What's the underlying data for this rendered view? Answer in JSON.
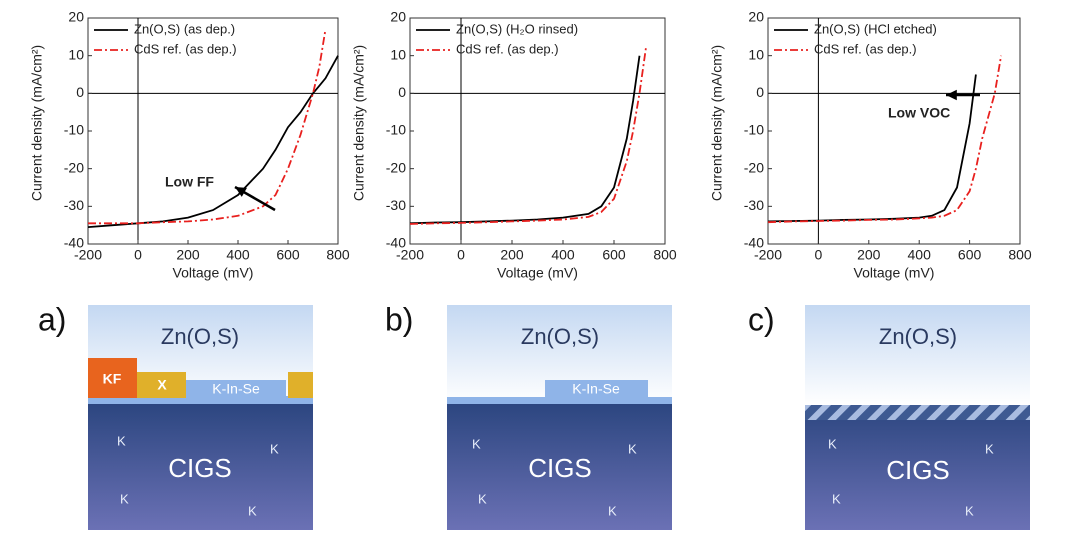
{
  "chart_data": [
    {
      "type": "line",
      "xlabel": "Voltage (mV)",
      "ylabel": "Current density (mA/cm²)",
      "xlim": [
        -200,
        800
      ],
      "ylim": [
        -40,
        20
      ],
      "xticks": [
        -200,
        0,
        200,
        400,
        600,
        800
      ],
      "yticks": [
        -40,
        -30,
        -20,
        -10,
        0,
        10,
        20
      ],
      "legend": "upper left",
      "annotation": "Low FF",
      "x": [
        -200,
        -100,
        0,
        100,
        200,
        300,
        400,
        500,
        550,
        600,
        650,
        700,
        725,
        750,
        800
      ],
      "series": [
        {
          "name": "Zn(O,S) (as dep.)",
          "color": "#000000",
          "linestyle": "solid",
          "values": [
            -35.5,
            -35,
            -34.5,
            -34,
            -33,
            -31,
            -27,
            -20,
            -15,
            -9,
            -5,
            0,
            2,
            4,
            10
          ]
        },
        {
          "name": "CdS ref. (as dep.)",
          "color": "#e8201e",
          "linestyle": "dashdot",
          "values": [
            -34.5,
            -34.5,
            -34.5,
            -34.2,
            -34,
            -33.5,
            -32.5,
            -30,
            -27,
            -20,
            -11,
            0,
            7,
            17,
            null
          ]
        }
      ]
    },
    {
      "type": "line",
      "xlabel": "Voltage (mV)",
      "ylabel": "Current density (mA/cm²)",
      "xlim": [
        -200,
        800
      ],
      "ylim": [
        -40,
        20
      ],
      "xticks": [
        -200,
        0,
        200,
        400,
        600,
        800
      ],
      "yticks": [
        -40,
        -30,
        -20,
        -10,
        0,
        10,
        20
      ],
      "legend": "upper left",
      "x": [
        -200,
        -100,
        0,
        100,
        200,
        300,
        400,
        500,
        550,
        600,
        650,
        675,
        700,
        725,
        750
      ],
      "series": [
        {
          "name": "Zn(O,S) (H₂O rinsed)",
          "color": "#000000",
          "linestyle": "solid",
          "values": [
            -34.5,
            -34.3,
            -34.2,
            -34,
            -33.8,
            -33.5,
            -33,
            -32,
            -30,
            -25,
            -12,
            -2,
            10,
            null,
            null
          ]
        },
        {
          "name": "CdS ref. (as dep.)",
          "color": "#e8201e",
          "linestyle": "dashdot",
          "values": [
            -34.7,
            -34.5,
            -34.4,
            -34.2,
            -34,
            -33.8,
            -33.5,
            -32.8,
            -31.5,
            -28,
            -18,
            -10,
            0,
            12,
            null
          ]
        }
      ]
    },
    {
      "type": "line",
      "xlabel": "Voltage (mV)",
      "ylabel": "Current density (mA/cm²)",
      "xlim": [
        -200,
        800
      ],
      "ylim": [
        -40,
        20
      ],
      "xticks": [
        -200,
        0,
        200,
        400,
        600,
        800
      ],
      "yticks": [
        -40,
        -30,
        -20,
        -10,
        0,
        10,
        20
      ],
      "legend": "upper left",
      "annotation": "Low VOC",
      "x": [
        -200,
        -100,
        0,
        100,
        200,
        300,
        400,
        450,
        500,
        550,
        600,
        625,
        650,
        700,
        725
      ],
      "series": [
        {
          "name": "Zn(O,S) (HCl etched)",
          "color": "#000000",
          "linestyle": "solid",
          "values": [
            -34,
            -33.9,
            -33.8,
            -33.6,
            -33.5,
            -33.3,
            -33,
            -32.5,
            -31,
            -25,
            -8,
            5,
            null,
            null,
            null
          ]
        },
        {
          "name": "CdS ref. (as dep.)",
          "color": "#e8201e",
          "linestyle": "dashdot",
          "values": [
            -34.2,
            -34,
            -33.9,
            -33.8,
            -33.6,
            -33.5,
            -33.2,
            -33,
            -32.5,
            -31,
            -26,
            -20,
            -12,
            0,
            10
          ]
        }
      ]
    }
  ],
  "diagrams": [
    {
      "label": "a)",
      "buffer": "Zn(O,S)",
      "absorber": "CIGS",
      "dopant": "K",
      "kf": "KF",
      "x": "X",
      "kinse": "K-In-Se"
    },
    {
      "label": "b)",
      "buffer": "Zn(O,S)",
      "absorber": "CIGS",
      "dopant": "K",
      "kinse": "K-In-Se"
    },
    {
      "label": "c)",
      "buffer": "Zn(O,S)",
      "absorber": "CIGS",
      "dopant": "K"
    }
  ]
}
